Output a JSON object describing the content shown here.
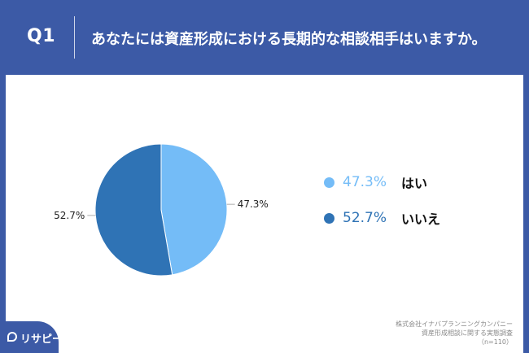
{
  "header": {
    "q_number": "Q1",
    "question": "あなたには資産形成における長期的な相談相手はいますか。"
  },
  "colors": {
    "background": "#3c5aa6",
    "yes": "#74bcf7",
    "no": "#2f73b5"
  },
  "chart_data": {
    "type": "pie",
    "categories": [
      "はい",
      "いいえ"
    ],
    "values": [
      47.3,
      52.7
    ],
    "unit": "%",
    "data_labels": [
      "47.3%",
      "52.7%"
    ],
    "colors": [
      "#74bcf7",
      "#2f73b5"
    ],
    "legend_position": "right"
  },
  "legend": [
    {
      "pct": "47.3%",
      "label": "はい",
      "color": "#74bcf7"
    },
    {
      "pct": "52.7%",
      "label": "いいえ",
      "color": "#2f73b5"
    }
  ],
  "source": {
    "line1": "株式会社イナバプランニングカンパニー",
    "line2": "資産形成相談に関する実態調査",
    "line3": "（n=110）"
  },
  "logo": {
    "text": "リサピー"
  }
}
